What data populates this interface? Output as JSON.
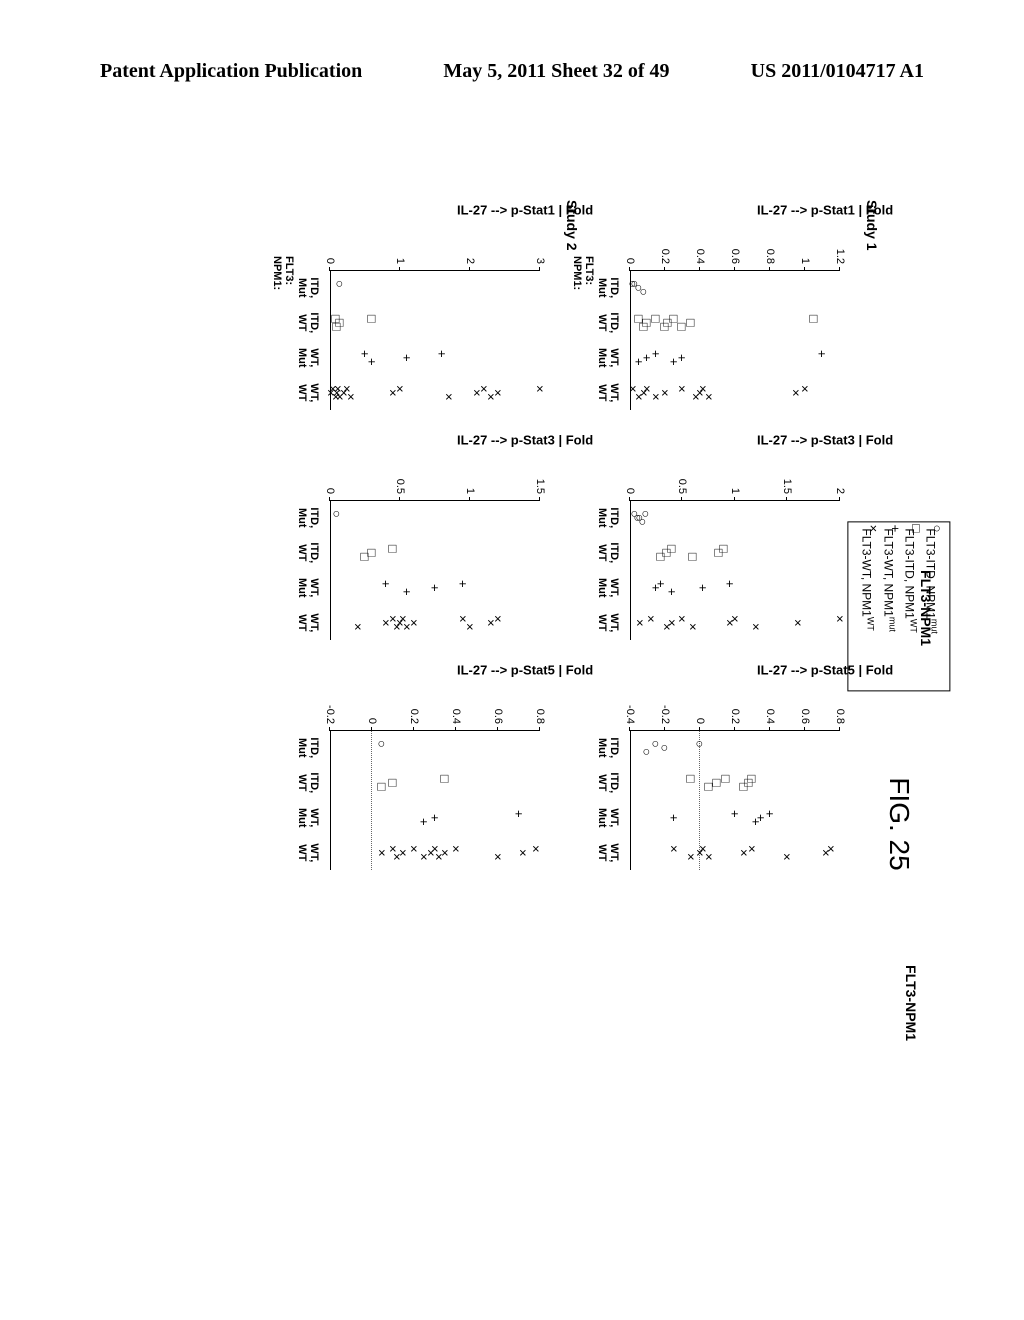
{
  "page_header": {
    "left": "Patent Application Publication",
    "center": "May 5, 2011   Sheet 32 of 49",
    "right": "US 2011/0104717 A1"
  },
  "figure_label": "FIG. 25",
  "legend": {
    "items": [
      {
        "marker": "circle",
        "label_prefix": "FLT3-ITD, NPM1",
        "sup": "mut"
      },
      {
        "marker": "square",
        "label_prefix": "FLT3-ITD, NPM1",
        "sup": "WT"
      },
      {
        "marker": "plus",
        "label_prefix": "FLT3-WT, NPM1",
        "sup": "mut"
      },
      {
        "marker": "cross",
        "label_prefix": "FLT3-WT, NPM1",
        "sup": "WT"
      }
    ]
  },
  "x_categories": [
    {
      "line1": "ITD,",
      "line2": "Mut"
    },
    {
      "line1": "ITD,",
      "line2": "WT"
    },
    {
      "line1": "WT,",
      "line2": "Mut"
    },
    {
      "line1": "WT,",
      "line2": "WT"
    }
  ],
  "axis_prefix": {
    "line1": "FLT3:",
    "line2": "NPM1:"
  },
  "side_label": "FLT3-NPM1",
  "studies": [
    {
      "label": "Study 1",
      "plots": [
        {
          "ylabel": "IL-27 --> p-Stat1 | Fold",
          "ylim": [
            0.0,
            1.2
          ],
          "yticks": [
            0.0,
            0.2,
            0.4,
            0.6,
            0.8,
            1.0,
            1.2
          ],
          "baseline": 0.0,
          "data": {
            "circle": [
              0.02,
              0.05,
              0.08,
              0.03
            ],
            "square": [
              1.05,
              0.35,
              0.3,
              0.25,
              0.22,
              0.2,
              0.15,
              0.1,
              0.08,
              0.05
            ],
            "plus": [
              1.1,
              0.3,
              0.25,
              0.15,
              0.1,
              0.05
            ],
            "cross": [
              1.0,
              0.95,
              0.45,
              0.42,
              0.4,
              0.38,
              0.3,
              0.2,
              0.15,
              0.1,
              0.08,
              0.05,
              0.02
            ]
          }
        },
        {
          "ylabel": "IL-27 --> p-Stat3 | Fold",
          "ylim": [
            0.0,
            2.0
          ],
          "yticks": [
            0.0,
            0.5,
            1.0,
            1.5,
            2.0
          ],
          "baseline": 0.0,
          "data": {
            "circle": [
              0.05,
              0.1,
              0.12,
              0.15,
              0.08
            ],
            "square": [
              0.9,
              0.85,
              0.6,
              0.4,
              0.35,
              0.3
            ],
            "plus": [
              0.95,
              0.7,
              0.4,
              0.3,
              0.25
            ],
            "cross": [
              2.0,
              1.6,
              1.2,
              1.0,
              0.95,
              0.6,
              0.5,
              0.4,
              0.35,
              0.2,
              0.1
            ]
          }
        },
        {
          "ylabel": "IL-27 --> p-Stat5 | Fold",
          "ylim": [
            -0.4,
            0.8
          ],
          "yticks": [
            -0.4,
            -0.2,
            -0.0,
            0.2,
            0.4,
            0.6,
            0.8
          ],
          "baseline": 0.0,
          "data": {
            "circle": [
              0.0,
              -0.2,
              -0.3,
              -0.25
            ],
            "square": [
              0.3,
              0.28,
              0.25,
              0.15,
              0.1,
              0.05,
              -0.05
            ],
            "plus": [
              0.4,
              0.35,
              0.32,
              0.2,
              -0.15
            ],
            "cross": [
              0.75,
              0.72,
              0.5,
              0.3,
              0.25,
              0.05,
              0.02,
              0.0,
              -0.05,
              -0.15
            ]
          }
        }
      ]
    },
    {
      "label": "Study 2",
      "plots": [
        {
          "ylabel": "IL-27 --> p-Stat1 | Fold",
          "ylim": [
            0,
            3
          ],
          "yticks": [
            0,
            1,
            2,
            3
          ],
          "baseline": 0.0,
          "data": {
            "circle": [
              0.15
            ],
            "square": [
              0.6,
              0.15,
              0.1,
              0.08
            ],
            "plus": [
              1.6,
              1.1,
              0.6,
              0.5
            ],
            "cross": [
              3.0,
              2.4,
              2.3,
              2.2,
              2.1,
              1.7,
              1.0,
              0.9,
              0.3,
              0.25,
              0.2,
              0.15,
              0.12,
              0.1,
              0.08,
              0.05,
              0.02
            ]
          }
        },
        {
          "ylabel": "IL-27 --> p-Stat3 | Fold",
          "ylim": [
            0.0,
            1.5
          ],
          "yticks": [
            0.0,
            0.5,
            1.0,
            1.5
          ],
          "baseline": 0.0,
          "data": {
            "circle": [
              0.05
            ],
            "square": [
              0.45,
              0.3,
              0.25
            ],
            "plus": [
              0.95,
              0.75,
              0.55,
              0.4
            ],
            "cross": [
              1.2,
              1.15,
              1.0,
              0.95,
              0.6,
              0.55,
              0.52,
              0.5,
              0.48,
              0.45,
              0.4,
              0.2
            ]
          }
        },
        {
          "ylabel": "IL-27 --> p-Stat5 | Fold",
          "ylim": [
            -0.2,
            0.8
          ],
          "yticks": [
            -0.2,
            0.0,
            0.2,
            0.4,
            0.6,
            0.8
          ],
          "baseline": 0.0,
          "data": {
            "circle": [
              0.05
            ],
            "square": [
              0.35,
              0.1,
              0.05
            ],
            "plus": [
              0.7,
              0.3,
              0.25
            ],
            "cross": [
              0.78,
              0.72,
              0.6,
              0.4,
              0.35,
              0.32,
              0.3,
              0.28,
              0.25,
              0.2,
              0.15,
              0.12,
              0.1,
              0.05
            ]
          }
        }
      ]
    }
  ],
  "colors": {
    "text": "#000000",
    "border": "#000000",
    "background": "#ffffff",
    "baseline": "#666666"
  }
}
